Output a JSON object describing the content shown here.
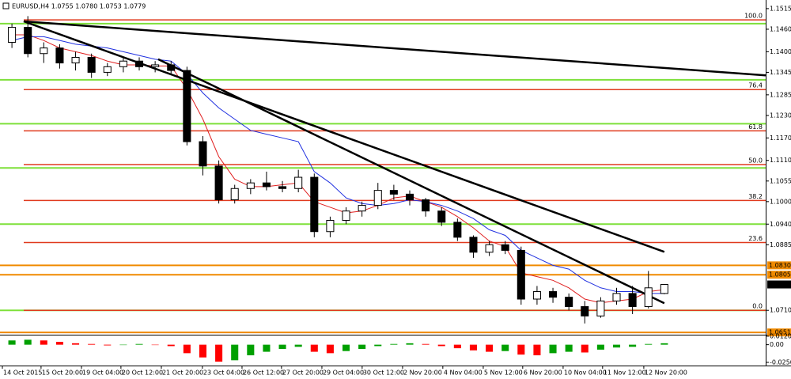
{
  "chart_data": [
    {
      "type": "candlestick",
      "title": "EURUSD,H4  1.0755 1.0780 1.0753 1.0779",
      "ohlc": [
        [
          1.1425,
          1.1475,
          1.141,
          1.1465
        ],
        [
          1.1465,
          1.1495,
          1.1385,
          1.1395
        ],
        [
          1.1395,
          1.1425,
          1.137,
          1.141
        ],
        [
          1.141,
          1.142,
          1.1355,
          1.137
        ],
        [
          1.137,
          1.14,
          1.135,
          1.1385
        ],
        [
          1.1385,
          1.1395,
          1.133,
          1.1345
        ],
        [
          1.1345,
          1.137,
          1.1335,
          1.136
        ],
        [
          1.136,
          1.1385,
          1.1345,
          1.1375
        ],
        [
          1.1375,
          1.1385,
          1.135,
          1.136
        ],
        [
          1.136,
          1.1375,
          1.1345,
          1.1365
        ],
        [
          1.1365,
          1.1375,
          1.134,
          1.135
        ],
        [
          1.135,
          1.136,
          1.115,
          1.116
        ],
        [
          1.116,
          1.1175,
          1.107,
          1.1095
        ],
        [
          1.1095,
          1.111,
          1.0995,
          1.1005
        ],
        [
          1.1005,
          1.1045,
          1.0995,
          1.1035
        ],
        [
          1.1035,
          1.106,
          1.102,
          1.105
        ],
        [
          1.105,
          1.108,
          1.103,
          1.104
        ],
        [
          1.104,
          1.1055,
          1.1025,
          1.1035
        ],
        [
          1.1035,
          1.1085,
          1.1025,
          1.1065
        ],
        [
          1.1065,
          1.1075,
          1.0905,
          1.092
        ],
        [
          1.092,
          1.096,
          1.0905,
          1.095
        ],
        [
          1.095,
          1.0985,
          1.094,
          1.0975
        ],
        [
          1.0975,
          1.1,
          1.096,
          1.099
        ],
        [
          1.099,
          1.105,
          1.098,
          1.103
        ],
        [
          1.103,
          1.1045,
          1.1005,
          1.102
        ],
        [
          1.102,
          1.103,
          1.099,
          1.1005
        ],
        [
          1.1005,
          1.101,
          1.096,
          1.0975
        ],
        [
          1.0975,
          1.0985,
          1.0935,
          1.0945
        ],
        [
          1.0945,
          1.0955,
          1.0895,
          1.0905
        ],
        [
          1.0905,
          1.091,
          1.085,
          1.0865
        ],
        [
          1.0865,
          1.0895,
          1.0855,
          1.0885
        ],
        [
          1.0885,
          1.0895,
          1.086,
          1.087
        ],
        [
          1.087,
          1.088,
          1.0725,
          1.074
        ],
        [
          1.074,
          1.0775,
          1.0725,
          1.076
        ],
        [
          1.076,
          1.077,
          1.073,
          1.0745
        ],
        [
          1.0745,
          1.0755,
          1.071,
          1.072
        ],
        [
          1.072,
          1.0735,
          1.0675,
          1.0695
        ],
        [
          1.0695,
          1.0745,
          1.069,
          1.0735
        ],
        [
          1.0735,
          1.077,
          1.0725,
          1.0755
        ],
        [
          1.0755,
          1.0775,
          1.07,
          1.072
        ],
        [
          1.072,
          1.0815,
          1.0715,
          1.077
        ],
        [
          1.0755,
          1.078,
          1.0753,
          1.0779
        ]
      ],
      "up_color": "#ffffff",
      "down_color": "#000000",
      "series": [
        {
          "color": "#e02020",
          "values": [
            1.1445,
            1.1445,
            1.143,
            1.141,
            1.14,
            1.139,
            1.1375,
            1.1365,
            1.1365,
            1.1362,
            1.1362,
            1.13,
            1.122,
            1.112,
            1.106,
            1.104,
            1.104,
            1.1045,
            1.105,
            1.1,
            1.0985,
            1.097,
            1.0975,
            1.099,
            1.101,
            1.1015,
            1.1,
            1.0985,
            1.096,
            1.093,
            1.0895,
            1.088,
            1.081,
            1.08,
            1.079,
            1.077,
            1.074,
            1.073,
            1.0735,
            1.074,
            1.076,
            1.0765
          ]
        },
        {
          "color": "#2030e0",
          "values": [
            1.143,
            1.144,
            1.144,
            1.143,
            1.142,
            1.1415,
            1.141,
            1.14,
            1.139,
            1.138,
            1.1375,
            1.134,
            1.129,
            1.125,
            1.122,
            1.119,
            1.118,
            1.117,
            1.116,
            1.108,
            1.105,
            1.101,
            1.0995,
            1.099,
            1.0995,
            1.1005,
            1.1,
            1.099,
            1.0975,
            1.0955,
            1.0925,
            1.091,
            1.087,
            1.085,
            1.083,
            1.082,
            1.079,
            1.077,
            1.076,
            1.076,
            1.0755,
            1.0755
          ]
        }
      ],
      "trendlines": [
        {
          "x": [
            0.74,
            47.37
          ],
          "y": [
            1.1481,
            1.1337
          ]
        },
        {
          "x": [
            0.74,
            41.0
          ],
          "y": [
            1.1481,
            1.0866
          ]
        },
        {
          "x": [
            9.19,
            41.0
          ],
          "y": [
            1.138,
            1.0729
          ]
        }
      ],
      "fib_levels": [
        {
          "value": 1.1485,
          "label": "100.0"
        },
        {
          "value": 1.1299,
          "label": "76.4"
        },
        {
          "value": 1.1189,
          "label": "61.8"
        },
        {
          "value": 1.1099,
          "label": "50.0"
        },
        {
          "value": 1.1003,
          "label": "38.2"
        },
        {
          "value": 1.0891,
          "label": "23.6"
        },
        {
          "value": 1.071,
          "label": "0.0"
        }
      ],
      "fib_color": "#e03a1e",
      "support_levels": [
        1.1475,
        1.1325,
        1.1208,
        1.109,
        1.094,
        1.071
      ],
      "support_color": "#7ee03a",
      "price_lines": [
        {
          "value": 1.083,
          "label": "1.0830",
          "color": "#f08a00"
        },
        {
          "value": 1.0805,
          "label": "1.0805",
          "color": "#f08a00"
        },
        {
          "value": 1.0779,
          "label": "1.0779",
          "color": "#000000"
        },
        {
          "value": 1.0651,
          "label": "1.0651",
          "color": "#f08a00"
        }
      ],
      "xlim": [
        -0.75,
        47.37
      ],
      "ylim": [
        1.0645,
        1.1538
      ],
      "yticks": [
        {
          "value": 1.1515,
          "label": "1.1515"
        },
        {
          "value": 1.146,
          "label": "1.1460"
        },
        {
          "value": 1.14,
          "label": "1.1400"
        },
        {
          "value": 1.1345,
          "label": "1.1345"
        },
        {
          "value": 1.1285,
          "label": "1.1285"
        },
        {
          "value": 1.123,
          "label": "1.1230"
        },
        {
          "value": 1.117,
          "label": "1.1170"
        },
        {
          "value": 1.111,
          "label": "1.1110"
        },
        {
          "value": 1.1055,
          "label": "1.1055"
        },
        {
          "value": 1.1,
          "label": "1.1000"
        },
        {
          "value": 1.094,
          "label": "1.0940"
        },
        {
          "value": 1.0885,
          "label": "1.0885"
        },
        {
          "value": 1.071,
          "label": "1.0710"
        }
      ],
      "xticks": [
        {
          "value": -0.6,
          "label": "14 Oct 2015"
        },
        {
          "value": 1.83,
          "label": "15 Oct 20:00"
        },
        {
          "value": 4.37,
          "label": "19 Oct 04:00"
        },
        {
          "value": 6.85,
          "label": "20 Oct 12:00"
        },
        {
          "value": 9.39,
          "label": "21 Oct 20:00"
        },
        {
          "value": 11.97,
          "label": "23 Oct 04:00"
        },
        {
          "value": 14.46,
          "label": "26 Oct 12:00"
        },
        {
          "value": 16.94,
          "label": "27 Oct 20:00"
        },
        {
          "value": 19.48,
          "label": "29 Oct 04:00"
        },
        {
          "value": 22.01,
          "label": "30 Oct 12:00"
        },
        {
          "value": 24.55,
          "label": "2 Nov 20:00"
        },
        {
          "value": 27.08,
          "label": "4 Nov 04:00"
        },
        {
          "value": 29.62,
          "label": "5 Nov 12:00"
        },
        {
          "value": 32.1,
          "label": "6 Nov 20:00"
        },
        {
          "value": 34.64,
          "label": "10 Nov 04:00"
        },
        {
          "value": 37.12,
          "label": "11 Nov 12:00"
        },
        {
          "value": 39.71,
          "label": "12 Nov 20:00"
        }
      ]
    },
    {
      "type": "bar",
      "values": [
        0.006,
        0.007,
        0.006,
        0.004,
        0.002,
        0.001,
        -0.001,
        0.0,
        0.001,
        0.0,
        -0.002,
        -0.012,
        -0.018,
        -0.024,
        -0.022,
        -0.015,
        -0.01,
        -0.006,
        -0.003,
        -0.01,
        -0.012,
        -0.009,
        -0.006,
        -0.002,
        0.001,
        0.002,
        0.001,
        -0.002,
        -0.005,
        -0.008,
        -0.01,
        -0.009,
        -0.014,
        -0.015,
        -0.012,
        -0.01,
        -0.011,
        -0.007,
        -0.004,
        -0.003,
        0.001,
        0.002
      ],
      "up_color": "#00a000",
      "down_color": "#ff0000",
      "ylim": [
        -0.025,
        0.013
      ],
      "yticks": [
        {
          "value": 0.012,
          "label": "0.0120"
        },
        {
          "value": 0,
          "label": "0.00"
        },
        {
          "value": -0.025,
          "label": "-0.0250"
        }
      ]
    }
  ]
}
